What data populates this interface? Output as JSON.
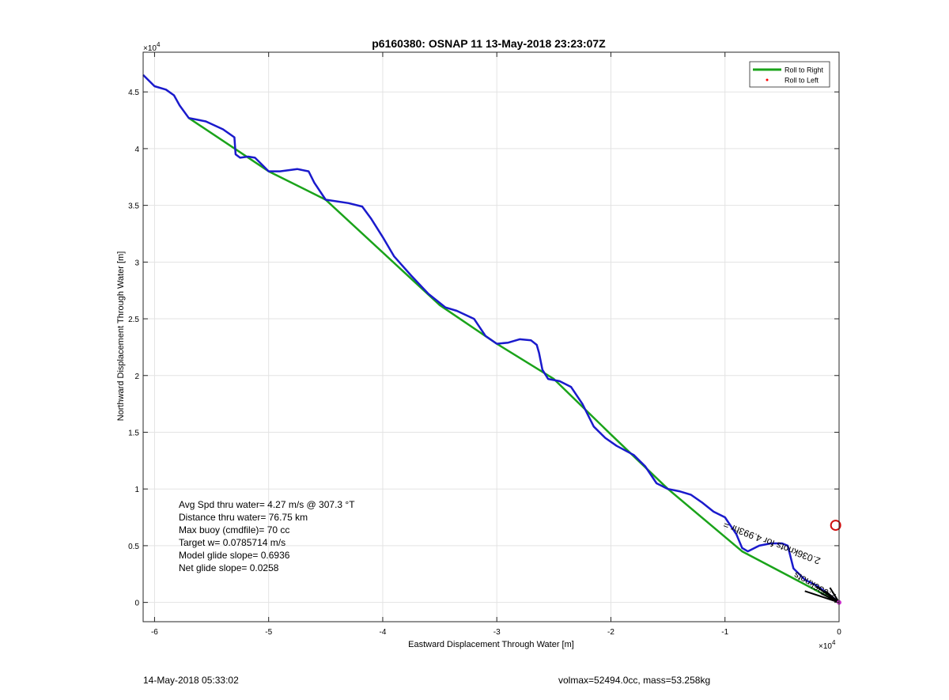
{
  "chart_data": {
    "type": "line",
    "title": "p6160380: OSNAP 11 13-May-2018 23:23:07Z",
    "xlabel": "Eastward Displacement Through Water [m]",
    "ylabel": "Northward Displacement Through Water [m]",
    "x_exponent_label": "×10",
    "x_exponent_power": "4",
    "y_exponent_label": "×10",
    "y_exponent_power": "4",
    "xlim": [
      -6.1,
      0
    ],
    "ylim": [
      -0.17,
      4.85
    ],
    "xticks": [
      -6,
      -5,
      -4,
      -3,
      -2,
      -1,
      0
    ],
    "xtick_labels": [
      "-6",
      "-5",
      "-4",
      "-3",
      "-2",
      "-1",
      "0"
    ],
    "yticks": [
      0,
      0.5,
      1,
      1.5,
      2,
      2.5,
      3,
      3.5,
      4,
      4.5
    ],
    "ytick_labels": [
      "0",
      "0.5",
      "1",
      "1.5",
      "2",
      "2.5",
      "3",
      "3.5",
      "4",
      "4.5"
    ],
    "grid": true,
    "legend": {
      "placement": "top-right",
      "entries": [
        {
          "label": "Roll to Right",
          "color": "#1aa31a",
          "marker": "line"
        },
        {
          "label": "Roll to Left",
          "color": "#ff0000",
          "marker": "dot"
        }
      ]
    },
    "series": [
      {
        "color": "#1aa31a",
        "style": "line",
        "x": [
          -5.7,
          -5.0,
          -4.5,
          -3.5,
          -3.0,
          -2.5,
          -2.0,
          -1.5,
          -0.85,
          0
        ],
        "y": [
          4.27,
          3.8,
          3.55,
          2.62,
          2.28,
          1.97,
          1.48,
          1.0,
          0.45,
          0
        ]
      },
      {
        "color": "#1a1acc",
        "style": "line",
        "x": [
          -6.1,
          -6.0,
          -5.9,
          -5.83,
          -5.78,
          -5.7,
          -5.55,
          -5.4,
          -5.3,
          -5.29,
          -5.25,
          -5.18,
          -5.12,
          -5.05,
          -5.0,
          -4.9,
          -4.75,
          -4.65,
          -4.6,
          -4.5,
          -4.3,
          -4.18,
          -4.1,
          -4.0,
          -3.9,
          -3.75,
          -3.6,
          -3.45,
          -3.35,
          -3.2,
          -3.1,
          -3.0,
          -2.9,
          -2.8,
          -2.7,
          -2.65,
          -2.63,
          -2.6,
          -2.55,
          -2.45,
          -2.35,
          -2.25,
          -2.15,
          -2.05,
          -1.95,
          -1.8,
          -1.7,
          -1.6,
          -1.5,
          -1.4,
          -1.3,
          -1.2,
          -1.1,
          -1.0,
          -0.9,
          -0.85,
          -0.8,
          -0.7,
          -0.6,
          -0.5,
          -0.45,
          -0.4,
          -0.3,
          -0.2,
          -0.1,
          0
        ],
        "y": [
          4.65,
          4.55,
          4.52,
          4.47,
          4.38,
          4.27,
          4.24,
          4.17,
          4.1,
          3.95,
          3.92,
          3.93,
          3.92,
          3.85,
          3.8,
          3.8,
          3.82,
          3.8,
          3.7,
          3.55,
          3.52,
          3.49,
          3.38,
          3.22,
          3.05,
          2.88,
          2.72,
          2.6,
          2.57,
          2.5,
          2.35,
          2.28,
          2.29,
          2.32,
          2.31,
          2.27,
          2.2,
          2.05,
          1.97,
          1.95,
          1.9,
          1.75,
          1.55,
          1.45,
          1.38,
          1.3,
          1.2,
          1.05,
          1.0,
          0.98,
          0.95,
          0.88,
          0.8,
          0.75,
          0.6,
          0.48,
          0.45,
          0.5,
          0.52,
          0.52,
          0.5,
          0.3,
          0.2,
          0.15,
          0.08,
          0
        ]
      }
    ],
    "annotations": {
      "stats": [
        "Avg Spd thru water=  4.27 m/s @ 307.3 °T",
        "Distance thru water= 76.75 km",
        "Max buoy (cmdfile)= 70 cc",
        "Target w= 0.0785714 m/s",
        "Model glide slope= 0.6936",
        "Net glide slope= 0.0258"
      ],
      "rotated_label": "2.036knots for 4.993hr =",
      "rotated_label_overlap": "2.036knots",
      "red_circle": {
        "x": -0.03,
        "y": 0.68
      }
    }
  },
  "footer": {
    "timestamp": "14-May-2018 05:33:02",
    "volmax": "volmax=52494.0cc, mass=53.258kg"
  }
}
